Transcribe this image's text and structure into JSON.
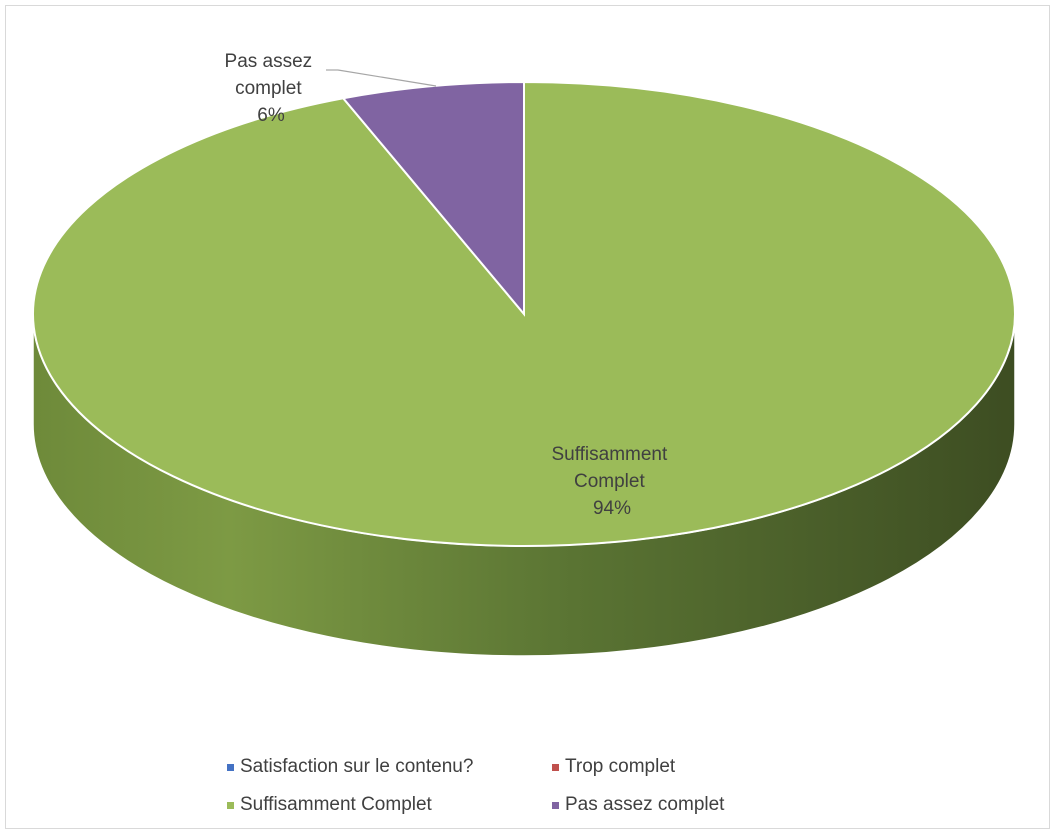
{
  "chart_data": {
    "type": "pie",
    "title": "",
    "series": [
      {
        "name": "Satisfaction sur le contenu?",
        "categories": [
          "Trop complet",
          "Suffisamment Complet",
          "Pas assez complet"
        ],
        "values": [
          0,
          94,
          6
        ],
        "data_labels": [
          {
            "category": "Suffisamment Complet",
            "text_lines": [
              "Suffisamment",
              "Complet",
              "94%"
            ]
          },
          {
            "category": "Pas assez complet",
            "text_lines": [
              "Pas assez",
              "complet",
              "6%"
            ]
          }
        ]
      }
    ],
    "legend": {
      "placement": "bottom",
      "entries": [
        {
          "label": "Satisfaction sur le contenu?",
          "color": "#4472c4"
        },
        {
          "label": "Trop complet",
          "color": "#c0504d"
        },
        {
          "label": "Suffisamment Complet",
          "color": "#9bbb59"
        },
        {
          "label": "Pas assez complet",
          "color": "#8064a2"
        }
      ]
    },
    "colors": {
      "Trop complet": "#c0504d",
      "Suffisamment Complet": "#9bbb59",
      "Pas assez complet": "#8064a2"
    },
    "style": "3d"
  }
}
